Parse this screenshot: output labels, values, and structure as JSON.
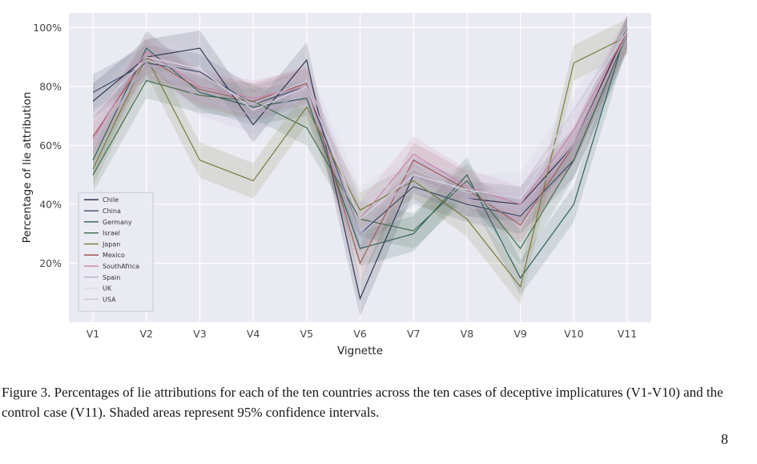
{
  "caption": {
    "text": "Figure 3. Percentages of lie attributions for each of the ten countries across the ten cases of deceptive implicatures (V1-V10) and the control case (V11). Shaded areas represent 95% confidence intervals."
  },
  "page_number": "8",
  "chart_data": {
    "type": "line",
    "x": [
      "V1",
      "V2",
      "V3",
      "V4",
      "V5",
      "V6",
      "V7",
      "V8",
      "V9",
      "V10",
      "V11"
    ],
    "xlabel": "Vignette",
    "ylabel": "Percentage of lie attribution",
    "ylim": [
      0,
      105
    ],
    "yticks": [
      20,
      40,
      60,
      80,
      100
    ],
    "ytick_labels": [
      "20%",
      "40%",
      "60%",
      "80%",
      "100%"
    ],
    "grid": true,
    "plot_bg": "#eaeaf2",
    "grid_color": "#ffffff",
    "tick_color": "#444444",
    "label_color": "#222222",
    "band_halfwidth": 6,
    "band_opacity": 0.15,
    "legend_position": "lower left",
    "series": [
      {
        "name": "Chile",
        "color": "#30304d",
        "values": [
          75,
          90,
          93,
          67,
          89,
          8,
          50,
          42,
          40,
          60,
          100
        ]
      },
      {
        "name": "China",
        "color": "#3c4a68",
        "values": [
          78,
          88,
          85,
          74,
          80,
          30,
          46,
          40,
          36,
          55,
          98
        ]
      },
      {
        "name": "Germany",
        "color": "#2e5e57",
        "values": [
          55,
          93,
          78,
          73,
          76,
          25,
          30,
          50,
          15,
          40,
          100
        ]
      },
      {
        "name": "Israel",
        "color": "#41694a",
        "values": [
          50,
          82,
          77,
          75,
          66,
          35,
          31,
          48,
          25,
          55,
          98
        ]
      },
      {
        "name": "Japan",
        "color": "#77763a",
        "values": [
          52,
          90,
          55,
          48,
          73,
          38,
          48,
          35,
          12,
          88,
          97
        ]
      },
      {
        "name": "Mexico",
        "color": "#9e5a5a",
        "values": [
          63,
          90,
          79,
          75,
          81,
          20,
          55,
          45,
          33,
          60,
          99
        ]
      },
      {
        "name": "SouthAfrica",
        "color": "#c883ab",
        "values": [
          62,
          92,
          80,
          76,
          80,
          35,
          57,
          46,
          40,
          65,
          99
        ]
      },
      {
        "name": "Spain",
        "color": "#b7aed0",
        "values": [
          60,
          88,
          76,
          70,
          78,
          30,
          50,
          42,
          38,
          60,
          98
        ]
      },
      {
        "name": "UK",
        "color": "#dcd9ea",
        "values": [
          70,
          90,
          86,
          72,
          80,
          35,
          50,
          45,
          42,
          70,
          99
        ]
      },
      {
        "name": "USA",
        "color": "#c9c6d6",
        "values": [
          72,
          89,
          84,
          74,
          82,
          40,
          52,
          44,
          45,
          72,
          100
        ]
      }
    ]
  }
}
